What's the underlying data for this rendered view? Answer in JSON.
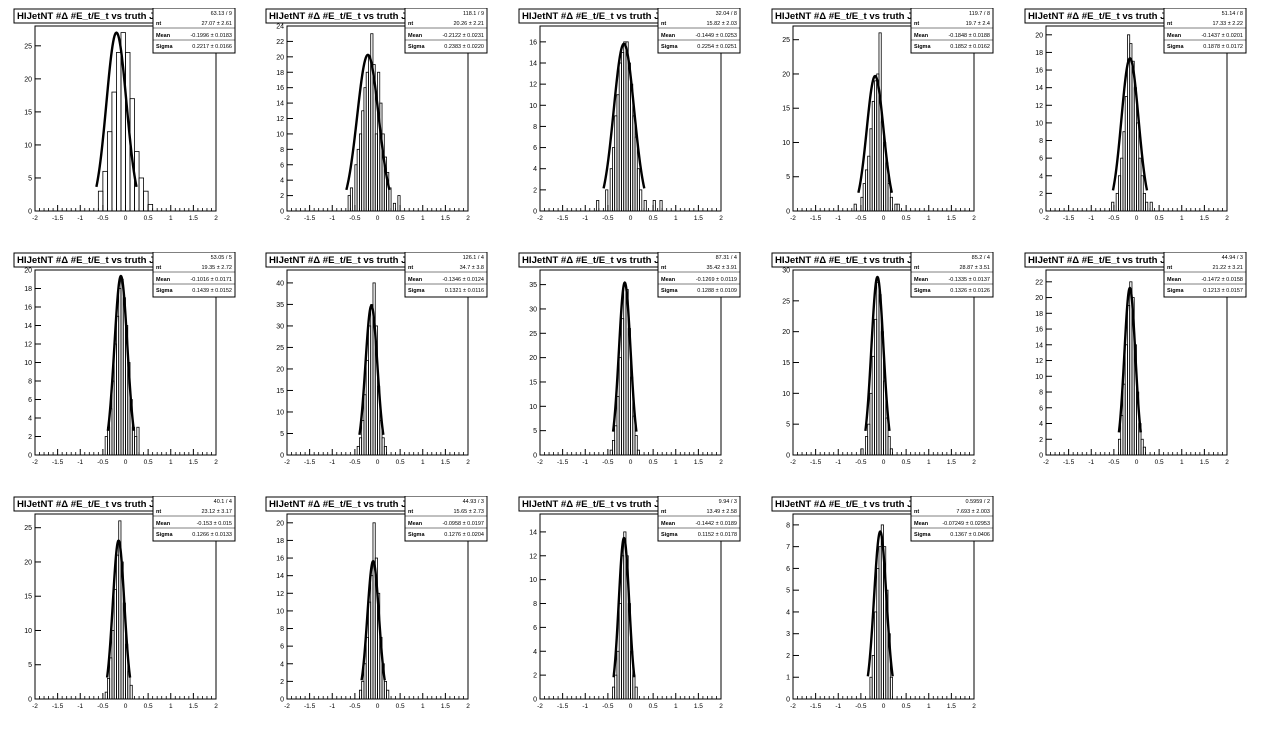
{
  "page": {
    "title": "HIJetNT #Δ #E_t/E_t vs truth Jet E_t grid"
  },
  "x_ticks": [
    "-2",
    "-1.5",
    "-1",
    "-0.5",
    "0",
    "0.5",
    "1",
    "1.5",
    "2"
  ],
  "xlim": [
    -2,
    2
  ],
  "colors": {
    "line": "#000000",
    "background": "#ffffff"
  },
  "chart_data": [
    {
      "type": "histogram",
      "title": "HIJetNT #Δ #E_t/E_t vs truth Jet E_t",
      "stats": {
        "chi2_ndf": "63.13 / 9",
        "const": "27.07 ± 2.61",
        "mean": "-0.1996 ± 0.0183",
        "sigma": "0.2217 ± 0.0166"
      },
      "fit": {
        "constant": 27,
        "mean": -0.2,
        "sigma": 0.2217
      },
      "ylim": [
        0,
        28
      ],
      "yticks": [
        0,
        5,
        10,
        15,
        20,
        25
      ],
      "bin_width": 0.1,
      "counts": {
        "-0.6": 3,
        "-0.5": 6,
        "-0.4": 12,
        "-0.3": 18,
        "-0.2": 24,
        "-0.1": 27,
        "0.0": 24,
        "0.1": 17,
        "0.2": 9,
        "0.3": 5,
        "0.4": 3,
        "0.5": 1
      }
    },
    {
      "type": "histogram",
      "title": "HIJetNT #Δ #E_t/E_t vs truth Jet E_t",
      "stats": {
        "chi2_ndf": "118.1 / 9",
        "const": "20.26 ± 2.21",
        "mean": "-0.2122 ± 0.0231",
        "sigma": "0.2383 ± 0.0220"
      },
      "fit": {
        "constant": 20.26,
        "mean": -0.212,
        "sigma": 0.238
      },
      "ylim": [
        0,
        24
      ],
      "yticks": [
        0,
        2,
        4,
        6,
        8,
        10,
        12,
        14,
        16,
        18,
        20,
        22,
        24
      ],
      "bin_width": 0.05,
      "counts": {
        "-0.65": 2,
        "-0.6": 3,
        "-0.5": 6,
        "-0.45": 8,
        "-0.4": 10,
        "-0.35": 13,
        "-0.3": 16,
        "-0.25": 18,
        "-0.2": 20,
        "-0.15": 23,
        "-0.1": 19,
        "-0.05": 10,
        "0.0": 18,
        "0.05": 14,
        "0.1": 10,
        "0.15": 7,
        "0.2": 5,
        "0.25": 3,
        "0.35": 1,
        "0.45": 2
      }
    },
    {
      "type": "histogram",
      "title": "HIJetNT #Δ #E_t/E_t vs truth Jet E_t",
      "stats": {
        "chi2_ndf": "32.04 / 8",
        "const": "15.82 ± 2.03",
        "mean": "-0.1449 ± 0.0253",
        "sigma": "0.2254 ± 0.0251"
      },
      "fit": {
        "constant": 15.82,
        "mean": -0.145,
        "sigma": 0.225
      },
      "ylim": [
        0,
        17.5
      ],
      "yticks": [
        0,
        2,
        4,
        6,
        8,
        10,
        12,
        14,
        16
      ],
      "bin_width": 0.05,
      "counts": {
        "-0.75": 1,
        "-0.55": 2,
        "-0.45": 4,
        "-0.4": 6,
        "-0.35": 9,
        "-0.3": 11,
        "-0.25": 14,
        "-0.2": 15,
        "-0.15": 16,
        "-0.1": 16,
        "-0.05": 14,
        "0.0": 12,
        "0.05": 9,
        "0.1": 7,
        "0.15": 4,
        "0.2": 2,
        "0.3": 1,
        "0.5": 1,
        "0.65": 1
      }
    },
    {
      "type": "histogram",
      "title": "HIJetNT #Δ #E_t/E_t vs truth Jet E_t",
      "stats": {
        "chi2_ndf": "119.7 / 8",
        "const": "19.7 ± 2.4",
        "mean": "-0.1848 ± 0.0188",
        "sigma": "0.1852 ± 0.0162"
      },
      "fit": {
        "constant": 19.7,
        "mean": -0.185,
        "sigma": 0.185
      },
      "ylim": [
        0,
        27
      ],
      "yticks": [
        0,
        5,
        10,
        15,
        20,
        25
      ],
      "bin_width": 0.05,
      "counts": {
        "-0.65": 1,
        "-0.5": 2,
        "-0.45": 4,
        "-0.4": 6,
        "-0.35": 8,
        "-0.3": 12,
        "-0.25": 16,
        "-0.2": 19,
        "-0.15": 20,
        "-0.1": 26,
        "-0.05": 13,
        "0.0": 10,
        "0.05": 7,
        "0.1": 4,
        "0.15": 2,
        "0.25": 1,
        "0.3": 1
      }
    },
    {
      "type": "histogram",
      "title": "HIJetNT #Δ #E_t/E_t vs truth Jet E_t",
      "stats": {
        "chi2_ndf": "51.14 / 8",
        "const": "17.33 ± 2.22",
        "mean": "-0.1437 ± 0.0201",
        "sigma": "0.1878 ± 0.0172"
      },
      "fit": {
        "constant": 17.33,
        "mean": -0.144,
        "sigma": 0.188
      },
      "ylim": [
        0,
        21
      ],
      "yticks": [
        0,
        2,
        4,
        6,
        8,
        10,
        12,
        14,
        16,
        18,
        20
      ],
      "bin_width": 0.05,
      "counts": {
        "-0.55": 1,
        "-0.45": 2,
        "-0.4": 4,
        "-0.35": 6,
        "-0.3": 9,
        "-0.25": 13,
        "-0.2": 20,
        "-0.15": 19,
        "-0.1": 17,
        "-0.05": 14,
        "0.0": 10,
        "0.05": 6,
        "0.1": 4,
        "0.15": 2,
        "0.2": 1,
        "0.3": 1
      }
    },
    {
      "type": "histogram",
      "title": "HIJetNT #Δ #E_t/E_t vs truth Jet E_t",
      "stats": {
        "chi2_ndf": "53.05 / 5",
        "const": "19.35 ± 2.72",
        "mean": "-0.1016 ± 0.0171",
        "sigma": "0.1439 ± 0.0152"
      },
      "fit": {
        "constant": 19.35,
        "mean": -0.102,
        "sigma": 0.144
      },
      "ylim": [
        0,
        20
      ],
      "yticks": [
        0,
        2,
        4,
        6,
        8,
        10,
        12,
        14,
        16,
        18,
        20
      ],
      "bin_width": 0.05,
      "counts": {
        "-0.45": 2,
        "-0.4": 3,
        "-0.35": 5,
        "-0.3": 8,
        "-0.25": 12,
        "-0.2": 15,
        "-0.15": 18,
        "-0.1": 19,
        "-0.05": 17,
        "0.0": 14,
        "0.05": 10,
        "0.1": 6,
        "0.15": 3,
        "0.2": 2,
        "0.25": 3
      }
    },
    {
      "type": "histogram",
      "title": "HIJetNT #Δ #E_t/E_t vs truth Jet E_t",
      "stats": {
        "chi2_ndf": "126.1 / 4",
        "const": "34.7 ± 3.8",
        "mean": "-0.1346 ± 0.0124",
        "sigma": "0.1321 ± 0.0116"
      },
      "fit": {
        "constant": 34.7,
        "mean": -0.135,
        "sigma": 0.132
      },
      "ylim": [
        0,
        43
      ],
      "yticks": [
        0,
        5,
        10,
        15,
        20,
        25,
        30,
        35,
        40
      ],
      "bin_width": 0.05,
      "counts": {
        "-0.45": 2,
        "-0.4": 4,
        "-0.35": 8,
        "-0.3": 14,
        "-0.25": 22,
        "-0.2": 30,
        "-0.15": 35,
        "-0.1": 40,
        "-0.05": 30,
        "0.0": 16,
        "0.05": 8,
        "0.1": 4,
        "0.15": 2
      }
    },
    {
      "type": "histogram",
      "title": "HIJetNT #Δ #E_t/E_t vs truth Jet E_t",
      "stats": {
        "chi2_ndf": "87.31 / 4",
        "const": "35.42 ± 3.91",
        "mean": "-0.1269 ± 0.0119",
        "sigma": "0.1288 ± 0.0109"
      },
      "fit": {
        "constant": 35.42,
        "mean": -0.127,
        "sigma": 0.129
      },
      "ylim": [
        0,
        38
      ],
      "yticks": [
        0,
        5,
        10,
        15,
        20,
        25,
        30,
        35
      ],
      "bin_width": 0.05,
      "counts": {
        "-0.45": 1,
        "-0.4": 3,
        "-0.35": 6,
        "-0.3": 12,
        "-0.25": 20,
        "-0.2": 28,
        "-0.15": 35,
        "-0.1": 34,
        "-0.05": 26,
        "0.0": 16,
        "0.05": 8,
        "0.1": 4,
        "0.15": 1
      }
    },
    {
      "type": "histogram",
      "title": "HIJetNT #Δ #E_t/E_t vs truth Jet E_t",
      "stats": {
        "chi2_ndf": "85.2 / 4",
        "const": "28.87 ± 3.51",
        "mean": "-0.1335 ± 0.0137",
        "sigma": "0.1326 ± 0.0126"
      },
      "fit": {
        "constant": 28.87,
        "mean": -0.134,
        "sigma": 0.133
      },
      "ylim": [
        0,
        30
      ],
      "yticks": [
        0,
        5,
        10,
        15,
        20,
        25,
        30
      ],
      "bin_width": 0.05,
      "counts": {
        "-0.5": 1,
        "-0.4": 3,
        "-0.35": 5,
        "-0.3": 10,
        "-0.25": 16,
        "-0.2": 22,
        "-0.15": 28,
        "-0.1": 26,
        "-0.05": 20,
        "0.0": 12,
        "0.05": 6,
        "0.1": 3,
        "0.15": 1
      }
    },
    {
      "type": "histogram",
      "title": "HIJetNT #Δ #E_t/E_t vs truth Jet E_t",
      "stats": {
        "chi2_ndf": "44.94 / 3",
        "const": "21.22 ± 3.21",
        "mean": "-0.1472 ± 0.0158",
        "sigma": "0.1213 ± 0.0157"
      },
      "fit": {
        "constant": 21.22,
        "mean": -0.147,
        "sigma": 0.121
      },
      "ylim": [
        0,
        23.5
      ],
      "yticks": [
        0,
        2,
        4,
        6,
        8,
        10,
        12,
        14,
        16,
        18,
        20,
        22
      ],
      "bin_width": 0.05,
      "counts": {
        "-0.4": 2,
        "-0.35": 5,
        "-0.3": 9,
        "-0.25": 14,
        "-0.2": 19,
        "-0.15": 22,
        "-0.1": 20,
        "-0.05": 14,
        "0.0": 8,
        "0.05": 4,
        "0.1": 2,
        "0.15": 1
      }
    },
    {
      "type": "histogram",
      "title": "HIJetNT #Δ #E_t/E_t vs truth Jet E_t",
      "stats": {
        "chi2_ndf": "40.1 / 4",
        "const": "23.12 ± 3.17",
        "mean": "-0.153 ± 0.015",
        "sigma": "0.1266 ± 0.0133"
      },
      "fit": {
        "constant": 23.12,
        "mean": -0.153,
        "sigma": 0.127
      },
      "ylim": [
        0,
        27
      ],
      "yticks": [
        0,
        5,
        10,
        15,
        20,
        25
      ],
      "bin_width": 0.05,
      "counts": {
        "-0.45": 1,
        "-0.4": 3,
        "-0.35": 6,
        "-0.3": 10,
        "-0.25": 16,
        "-0.2": 21,
        "-0.15": 26,
        "-0.1": 20,
        "-0.05": 14,
        "0.0": 8,
        "0.05": 4,
        "0.1": 2
      }
    },
    {
      "type": "histogram",
      "title": "HIJetNT #Δ #E_t/E_t vs truth Jet E_t",
      "stats": {
        "chi2_ndf": "44.93 / 3",
        "const": "15.65 ± 2.73",
        "mean": "-0.0958 ± 0.0197",
        "sigma": "0.1276 ± 0.0204"
      },
      "fit": {
        "constant": 15.65,
        "mean": -0.096,
        "sigma": 0.128
      },
      "ylim": [
        0,
        21
      ],
      "yticks": [
        0,
        2,
        4,
        6,
        8,
        10,
        12,
        14,
        16,
        18,
        20
      ],
      "bin_width": 0.05,
      "counts": {
        "-0.4": 1,
        "-0.35": 2,
        "-0.3": 4,
        "-0.25": 7,
        "-0.2": 11,
        "-0.15": 14,
        "-0.1": 20,
        "-0.05": 16,
        "0.0": 12,
        "0.05": 7,
        "0.1": 4,
        "0.15": 2,
        "0.2": 1
      }
    },
    {
      "type": "histogram",
      "title": "HIJetNT #Δ #E_t/E_t vs truth Jet E_t",
      "stats": {
        "chi2_ndf": "9.94 / 3",
        "const": "13.49 ± 2.58",
        "mean": "-0.1442 ± 0.0189",
        "sigma": "0.1152 ± 0.0178"
      },
      "fit": {
        "constant": 13.49,
        "mean": -0.144,
        "sigma": 0.115
      },
      "ylim": [
        0,
        15.5
      ],
      "yticks": [
        0,
        2,
        4,
        6,
        8,
        10,
        12,
        14
      ],
      "bin_width": 0.05,
      "counts": {
        "-0.4": 1,
        "-0.35": 2,
        "-0.3": 4,
        "-0.25": 8,
        "-0.2": 12,
        "-0.15": 14,
        "-0.1": 12,
        "-0.05": 8,
        "0.0": 4,
        "0.05": 2,
        "0.1": 1
      }
    },
    {
      "type": "histogram",
      "title": "HIJetNT #Δ #E_t/E_t vs truth Jet E_t",
      "stats": {
        "chi2_ndf": "0.5959 / 2",
        "const": "7.693 ± 2.003",
        "mean": "-0.07249 ± 0.02953",
        "sigma": "0.1367 ± 0.0406"
      },
      "fit": {
        "constant": 7.693,
        "mean": -0.072,
        "sigma": 0.137
      },
      "ylim": [
        0,
        8.5
      ],
      "yticks": [
        0,
        1,
        2,
        3,
        4,
        5,
        6,
        7,
        8
      ],
      "bin_width": 0.05,
      "counts": {
        "-0.3": 1,
        "-0.25": 2,
        "-0.2": 4,
        "-0.15": 6,
        "-0.1": 7,
        "-0.05": 8,
        "0.0": 7,
        "0.05": 5,
        "0.1": 3,
        "0.15": 1
      }
    }
  ]
}
